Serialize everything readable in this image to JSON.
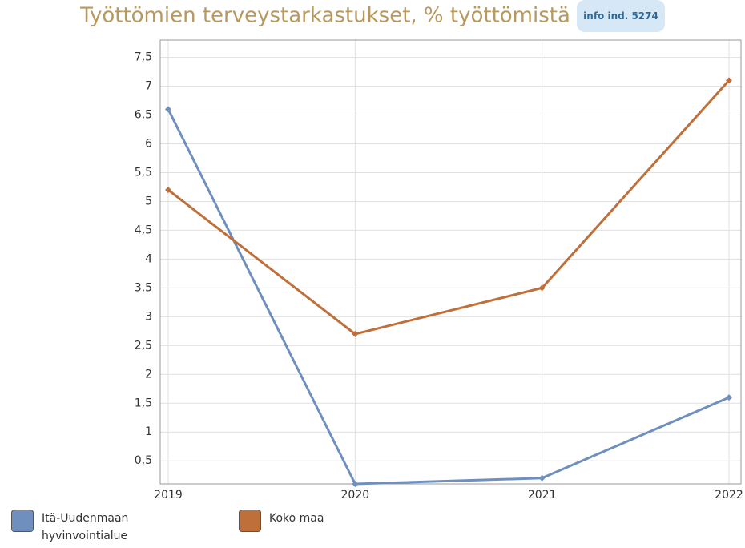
{
  "chart_data": {
    "type": "line",
    "title": "Työttömien terveystarkastukset, % työttömistä",
    "badge": "info ind. 5274",
    "categories": [
      "2019",
      "2020",
      "2021",
      "2022"
    ],
    "series": [
      {
        "name": "Itä-Uudenmaan hyvinvointialue",
        "color": "#6f8fbf",
        "values": [
          6.6,
          0.1,
          0.2,
          1.6
        ]
      },
      {
        "name": "Koko maa",
        "color": "#bf6f3a",
        "values": [
          5.2,
          2.7,
          3.5,
          7.1
        ]
      }
    ],
    "ylim": [
      0.1,
      7.8
    ],
    "yticks": [
      {
        "value": 0.5,
        "label": "0,5"
      },
      1,
      {
        "value": 1.5,
        "label": "1,5"
      },
      2,
      {
        "value": 2.5,
        "label": "2,5"
      },
      3,
      {
        "value": 3.5,
        "label": "3,5"
      },
      4,
      {
        "value": 4.5,
        "label": "4,5"
      },
      5,
      {
        "value": 5.5,
        "label": "5,5"
      },
      6,
      {
        "value": 6.5,
        "label": "6,5"
      },
      7,
      {
        "value": 7.5,
        "label": "7,5"
      }
    ],
    "grid": true
  }
}
